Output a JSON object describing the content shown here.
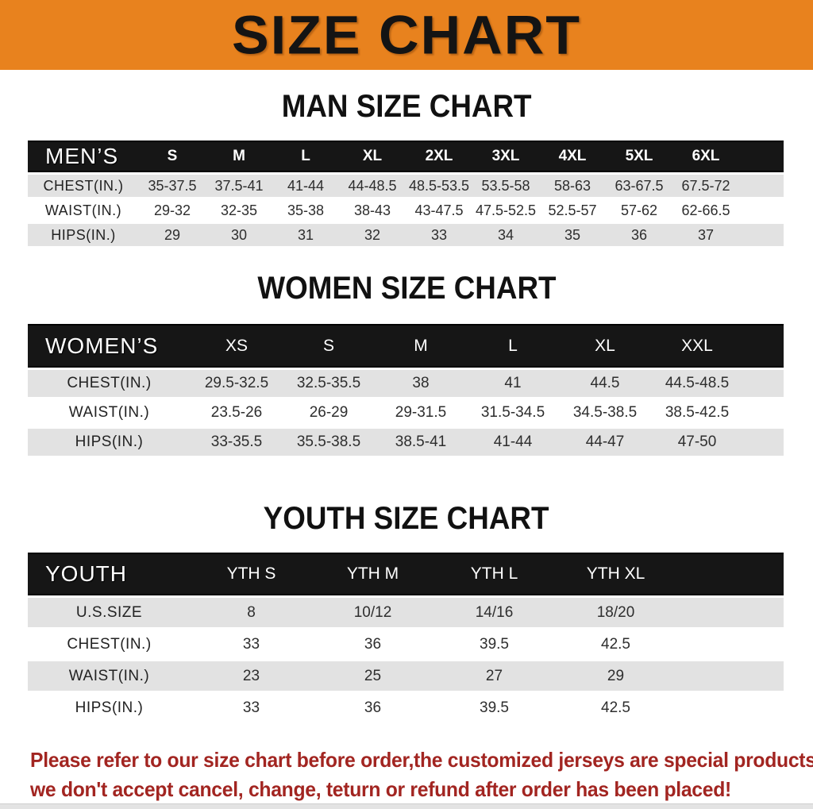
{
  "banner": {
    "title": "SIZE CHART"
  },
  "headings": {
    "men": "MAN SIZE CHART",
    "women": "WOMEN SIZE CHART",
    "youth": "YOUTH SIZE CHART"
  },
  "tables": {
    "men": {
      "label": "MEN’S",
      "columns": [
        "S",
        "M",
        "L",
        "XL",
        "2XL",
        "3XL",
        "4XL",
        "5XL",
        "6XL"
      ],
      "rows": [
        {
          "label": "CHEST(IN.)",
          "values": [
            "35-37.5",
            "37.5-41",
            "41-44",
            "44-48.5",
            "48.5-53.5",
            "53.5-58",
            "58-63",
            "63-67.5",
            "67.5-72"
          ]
        },
        {
          "label": "WAIST(IN.)",
          "values": [
            "29-32",
            "32-35",
            "35-38",
            "38-43",
            "43-47.5",
            "47.5-52.5",
            "52.5-57",
            "57-62",
            "62-66.5"
          ]
        },
        {
          "label": "HIPS(IN.)",
          "values": [
            "29",
            "30",
            "31",
            "32",
            "33",
            "34",
            "35",
            "36",
            "37"
          ]
        }
      ]
    },
    "women": {
      "label": "WOMEN’S",
      "columns": [
        "XS",
        "S",
        "M",
        "L",
        "XL",
        "XXL"
      ],
      "rows": [
        {
          "label": "CHEST(IN.)",
          "values": [
            "29.5-32.5",
            "32.5-35.5",
            "38",
            "41",
            "44.5",
            "44.5-48.5"
          ]
        },
        {
          "label": "WAIST(IN.)",
          "values": [
            "23.5-26",
            "26-29",
            "29-31.5",
            "31.5-34.5",
            "34.5-38.5",
            "38.5-42.5"
          ]
        },
        {
          "label": "HIPS(IN.)",
          "values": [
            "33-35.5",
            "35.5-38.5",
            "38.5-41",
            "41-44",
            "44-47",
            "47-50"
          ]
        }
      ]
    },
    "youth": {
      "label": "YOUTH",
      "columns": [
        "YTH S",
        "YTH M",
        "YTH L",
        "YTH XL"
      ],
      "rows": [
        {
          "label": "U.S.SIZE",
          "values": [
            "8",
            "10/12",
            "14/16",
            "18/20"
          ]
        },
        {
          "label": "CHEST(IN.)",
          "values": [
            "33",
            "36",
            "39.5",
            "42.5"
          ]
        },
        {
          "label": "WAIST(IN.)",
          "values": [
            "23",
            "25",
            "27",
            "29"
          ]
        },
        {
          "label": "HIPS(IN.)",
          "values": [
            "33",
            "36",
            "39.5",
            "42.5"
          ]
        }
      ]
    }
  },
  "note": {
    "line1": "Please refer to our size chart before order,the customized jerseys are special products,",
    "line2": "we don't accept cancel, change, teturn or refund after order has been placed!"
  },
  "colors": {
    "banner_bg": "#E8821E",
    "band_bg": "#161616",
    "row_alt": "#E2E2E2",
    "note": "#A22521"
  }
}
